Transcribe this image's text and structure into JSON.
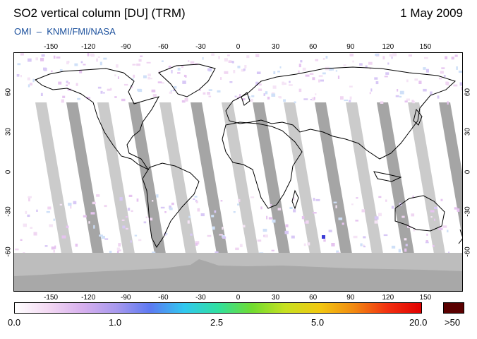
{
  "header": {
    "title": "SO2 vertical column [DU] (TRM)",
    "date": "1 May 2009",
    "credit": "OMI  –  KNMI/FMI/NASA"
  },
  "map": {
    "projection": "equirectangular",
    "lon_ticks": [
      "-150",
      "-120",
      "-90",
      "-60",
      "-30",
      "0",
      "30",
      "60",
      "90",
      "120",
      "150"
    ],
    "lat_ticks": [
      "60",
      "30",
      "0",
      "-30",
      "-60"
    ],
    "colors": {
      "swath_gap": "#c8c8c8",
      "swath_gap_dark": "#a0a0a0",
      "polar_night": "#bdbdbd",
      "antarctica": "#a8a8a8",
      "coastline": "#000000"
    }
  },
  "colorbar": {
    "labels": [
      "0.0",
      "1.0",
      "2.5",
      "5.0",
      "20.0"
    ],
    "overflow_label": ">50",
    "overflow_color": "#5a0000",
    "gradient": [
      "#ffffff",
      "#f3d8f3",
      "#d7b0ee",
      "#a899ee",
      "#5c79f2",
      "#30c8f0",
      "#30e0a0",
      "#70dc30",
      "#c8e020",
      "#f2c810",
      "#f28a10",
      "#f23010",
      "#e00000"
    ]
  }
}
